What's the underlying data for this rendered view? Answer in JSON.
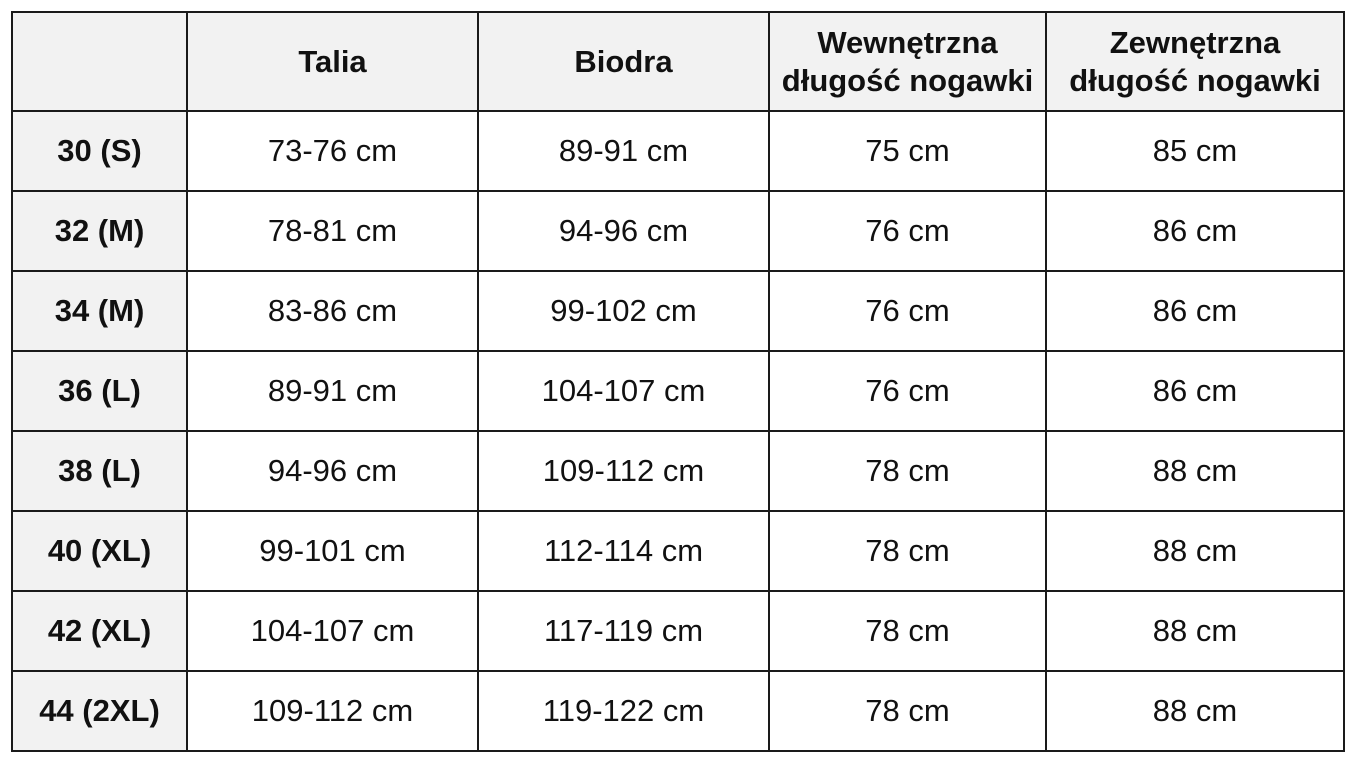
{
  "columns": [
    {
      "key": "size",
      "lines": []
    },
    {
      "key": "talia",
      "lines": [
        "Talia"
      ]
    },
    {
      "key": "biodra",
      "lines": [
        "Biodra"
      ]
    },
    {
      "key": "wewnetrzna",
      "lines": [
        "Wewnętrzna",
        "długość nogawki"
      ]
    },
    {
      "key": "zewnetrzna",
      "lines": [
        "Zewnętrzna",
        "długość nogawki"
      ]
    }
  ],
  "rows": [
    {
      "size": "30 (S)",
      "talia": "73-76 cm",
      "biodra": "89-91 cm",
      "wewnetrzna": "75 cm",
      "zewnetrzna": "85 cm"
    },
    {
      "size": "32 (M)",
      "talia": "78-81 cm",
      "biodra": "94-96 cm",
      "wewnetrzna": "76 cm",
      "zewnetrzna": "86 cm"
    },
    {
      "size": "34 (M)",
      "talia": "83-86 cm",
      "biodra": "99-102 cm",
      "wewnetrzna": "76 cm",
      "zewnetrzna": "86 cm"
    },
    {
      "size": "36 (L)",
      "talia": "89-91 cm",
      "biodra": "104-107 cm",
      "wewnetrzna": "76 cm",
      "zewnetrzna": "86 cm"
    },
    {
      "size": "38 (L)",
      "talia": "94-96 cm",
      "biodra": "109-112 cm",
      "wewnetrzna": "78 cm",
      "zewnetrzna": "88 cm"
    },
    {
      "size": "40 (XL)",
      "talia": "99-101 cm",
      "biodra": "112-114 cm",
      "wewnetrzna": "78 cm",
      "zewnetrzna": "88 cm"
    },
    {
      "size": "42 (XL)",
      "talia": "104-107 cm",
      "biodra": "117-119 cm",
      "wewnetrzna": "78 cm",
      "zewnetrzna": "88 cm"
    },
    {
      "size": "44 (2XL)",
      "talia": "109-112 cm",
      "biodra": "119-122 cm",
      "wewnetrzna": "78 cm",
      "zewnetrzna": "88 cm"
    }
  ],
  "colors": {
    "header_bg": "#f2f2f2",
    "border": "#1a1a1a",
    "text": "#111111"
  }
}
